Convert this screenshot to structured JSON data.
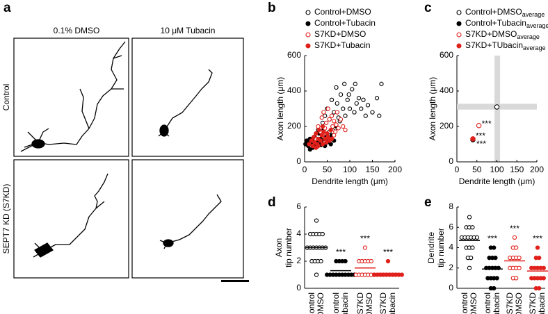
{
  "panel_a": {
    "label": "a",
    "columns": [
      "0.1% DMSO",
      "10 μM Tubacin"
    ],
    "rows": [
      "Control",
      "SEPT7 KD (S7KD)"
    ]
  },
  "chart_data": [
    {
      "type": "scatter",
      "panel": "b",
      "xlabel": "Dendrite length (μm)",
      "ylabel": "Axon length (μm)",
      "xlim": [
        0,
        200
      ],
      "xticks": [
        0,
        50,
        100,
        150,
        200
      ],
      "ylim": [
        0,
        600
      ],
      "yticks": [
        0,
        200,
        400,
        600
      ],
      "series": [
        {
          "name": "Control+DMSO",
          "color": "#000000",
          "marker": "open",
          "x": [
            20,
            30,
            40,
            45,
            50,
            55,
            60,
            62,
            65,
            70,
            72,
            75,
            80,
            85,
            88,
            90,
            95,
            100,
            105,
            110,
            115,
            120,
            125,
            130,
            135,
            140,
            150,
            160,
            165,
            170,
            55,
            68,
            78,
            98,
            112
          ],
          "values": [
            120,
            180,
            220,
            260,
            300,
            240,
            350,
            200,
            280,
            420,
            330,
            250,
            380,
            300,
            440,
            260,
            350,
            300,
            410,
            280,
            330,
            360,
            300,
            350,
            260,
            320,
            280,
            360,
            260,
            440,
            170,
            190,
            230,
            380,
            440
          ]
        },
        {
          "name": "Control+Tubacin",
          "color": "#000000",
          "marker": "filled",
          "x": [
            2,
            5,
            8,
            10,
            12,
            15,
            18,
            20,
            22,
            25,
            28,
            30,
            32,
            35,
            38,
            40,
            42,
            45,
            48,
            50,
            55,
            58,
            60,
            65,
            70,
            12,
            27,
            36,
            44,
            52
          ],
          "values": [
            100,
            120,
            90,
            110,
            130,
            100,
            80,
            120,
            140,
            100,
            90,
            110,
            160,
            130,
            100,
            120,
            180,
            90,
            140,
            110,
            130,
            100,
            150,
            120,
            200,
            70,
            85,
            95,
            105,
            115
          ]
        },
        {
          "name": "S7KD+DMSO",
          "color": "#e0201b",
          "marker": "open",
          "x": [
            25,
            30,
            35,
            38,
            40,
            42,
            45,
            48,
            50,
            52,
            55,
            58,
            60,
            62,
            65,
            68,
            70,
            72,
            75,
            80,
            85,
            90,
            55,
            45,
            65
          ],
          "values": [
            130,
            200,
            170,
            250,
            150,
            280,
            190,
            220,
            160,
            300,
            240,
            180,
            260,
            200,
            230,
            170,
            210,
            280,
            190,
            240,
            200,
            180,
            120,
            110,
            150
          ]
        },
        {
          "name": "S7KD+Tubacin",
          "color": "#e0201b",
          "marker": "filled",
          "x": [
            10,
            15,
            18,
            20,
            22,
            25,
            28,
            30,
            32,
            35,
            38,
            40,
            42,
            45,
            48,
            50,
            52,
            55,
            58,
            60,
            30,
            40,
            25
          ],
          "values": [
            100,
            120,
            90,
            140,
            110,
            160,
            100,
            130,
            180,
            120,
            150,
            100,
            170,
            130,
            110,
            160,
            140,
            120,
            180,
            130,
            90,
            200,
            80
          ]
        }
      ]
    },
    {
      "type": "scatter",
      "panel": "c",
      "xlabel": "Dendrite length (μm)",
      "ylabel": "Axon length (μm)",
      "xlim": [
        0,
        200
      ],
      "xticks": [
        0,
        50,
        100,
        150,
        200
      ],
      "ylim": [
        0,
        600
      ],
      "yticks": [
        0,
        200,
        400,
        600
      ],
      "x_band": [
        94,
        108
      ],
      "y_band": [
        295,
        328
      ],
      "series": [
        {
          "name": "Control+DMSO",
          "subscript": "average",
          "color": "#000000",
          "marker": "open",
          "x": [
            100
          ],
          "values": [
            310
          ]
        },
        {
          "name": "Control+Tubacin",
          "subscript": "average",
          "color": "#000000",
          "marker": "filled",
          "x": [
            40
          ],
          "values": [
            125
          ]
        },
        {
          "name": "S7KD+DMSO",
          "subscript": "average",
          "color": "#e0201b",
          "marker": "open",
          "x": [
            55
          ],
          "values": [
            205
          ]
        },
        {
          "name": "S7KD+TUbacin",
          "subscript": "average",
          "color": "#e0201b",
          "marker": "filled",
          "x": [
            40
          ],
          "values": [
            130
          ]
        }
      ],
      "annotations": [
        {
          "text": "***",
          "series": 2
        },
        {
          "text": "***",
          "series": 1
        },
        {
          "text": "***",
          "series": 3
        }
      ]
    },
    {
      "type": "dot",
      "panel": "d",
      "ylabel": [
        "Axon",
        "tip number"
      ],
      "ylim": [
        0,
        6
      ],
      "yticks": [
        0,
        2,
        4,
        6
      ],
      "categories": [
        [
          "Control",
          "+DMSO"
        ],
        [
          "Control",
          "+Tubacin"
        ],
        [
          "S7KD",
          "+DMSO"
        ],
        [
          "S7KD",
          "+Tubacin"
        ]
      ],
      "colors": [
        "#000000",
        "#000000",
        "#e0201b",
        "#e0201b"
      ],
      "markers": [
        "open",
        "filled",
        "open",
        "filled"
      ],
      "groups": [
        [
          1,
          2,
          2,
          2,
          2,
          3,
          3,
          3,
          3,
          3,
          3,
          3,
          4,
          4,
          4,
          4,
          4,
          5
        ],
        [
          1,
          1,
          1,
          1,
          1,
          1,
          1,
          1,
          1,
          1,
          2,
          2,
          2,
          2
        ],
        [
          1,
          1,
          1,
          1,
          1,
          1,
          1,
          2,
          2,
          2,
          2,
          2,
          3
        ],
        [
          1,
          1,
          1,
          1,
          1,
          1,
          1,
          1,
          1,
          1,
          2
        ]
      ],
      "means": [
        3,
        1.3,
        1.5,
        1.1
      ],
      "stars": [
        null,
        "***",
        "***",
        "***"
      ]
    },
    {
      "type": "dot",
      "panel": "e",
      "ylabel": [
        "Dendrite",
        "tip number"
      ],
      "ylim": [
        0,
        8
      ],
      "yticks": [
        0,
        2,
        4,
        6,
        8
      ],
      "categories": [
        [
          "Control",
          "+DMSO"
        ],
        [
          "Control",
          "+Tubacin"
        ],
        [
          "S7KD",
          "+DMSO"
        ],
        [
          "S7KD",
          "+Tubacin"
        ]
      ],
      "colors": [
        "#000000",
        "#000000",
        "#e0201b",
        "#e0201b"
      ],
      "markers": [
        "open",
        "filled",
        "open",
        "filled"
      ],
      "groups": [
        [
          2,
          3,
          3,
          4,
          4,
          4,
          5,
          5,
          5,
          5,
          5,
          5,
          6,
          6,
          6,
          7
        ],
        [
          0,
          0,
          1,
          1,
          1,
          1,
          2,
          2,
          2,
          2,
          2,
          3,
          3,
          3,
          4,
          4
        ],
        [
          1,
          1,
          2,
          2,
          2,
          2,
          3,
          3,
          3,
          3,
          4,
          4,
          5
        ],
        [
          0,
          0,
          1,
          1,
          1,
          1,
          1,
          2,
          2,
          2,
          2,
          2,
          3,
          3,
          4
        ]
      ],
      "means": [
        4.7,
        1.9,
        2.7,
        1.7
      ],
      "stars": [
        null,
        "***",
        "***",
        "***"
      ]
    }
  ]
}
